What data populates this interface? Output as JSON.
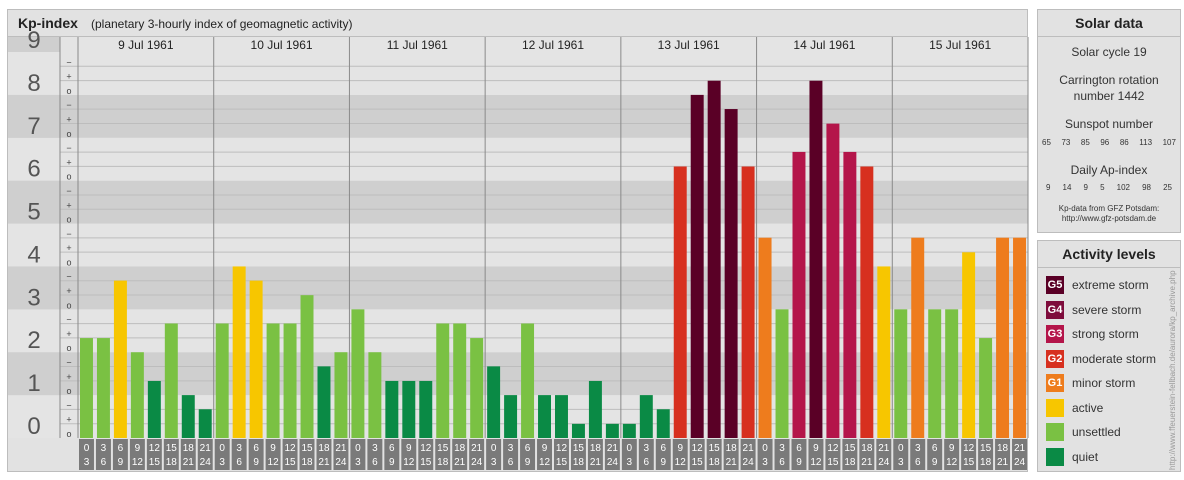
{
  "header": {
    "title": "Kp-index",
    "subtitle": "(planetary 3-hourly index of geomagnetic activity)"
  },
  "chart_data": {
    "type": "bar",
    "ylim": [
      0,
      9
    ],
    "y_ticks": [
      "0",
      "1",
      "2",
      "3",
      "4",
      "5",
      "6",
      "7",
      "8",
      "9"
    ],
    "minor_marks": [
      "o",
      "+",
      "−"
    ],
    "days": [
      "9 Jul 1961",
      "10 Jul 1961",
      "11 Jul 1961",
      "12 Jul 1961",
      "13 Jul 1961",
      "14 Jul 1961",
      "15 Jul 1961"
    ],
    "interval_labels": [
      [
        "0",
        "3"
      ],
      [
        "3",
        "6"
      ],
      [
        "6",
        "9"
      ],
      [
        "9",
        "12"
      ],
      [
        "12",
        "15"
      ],
      [
        "15",
        "18"
      ],
      [
        "18",
        "21"
      ],
      [
        "21",
        "24"
      ]
    ],
    "values": [
      2.33,
      2.33,
      3.67,
      2.0,
      1.33,
      2.67,
      1.0,
      0.67,
      2.67,
      4.0,
      3.67,
      2.67,
      2.67,
      3.33,
      1.67,
      2.0,
      3.0,
      2.0,
      1.33,
      1.33,
      1.33,
      2.67,
      2.67,
      2.33,
      1.67,
      1.0,
      2.67,
      1.0,
      1.0,
      0.33,
      1.33,
      0.33,
      0.33,
      1.0,
      0.67,
      6.33,
      8.0,
      8.33,
      7.67,
      6.33,
      4.67,
      3.0,
      6.67,
      8.33,
      7.33,
      6.67,
      6.33,
      4.0,
      3.0,
      4.67,
      3.0,
      3.0,
      4.33,
      2.33,
      4.67,
      4.67
    ],
    "colors": {
      "quiet": "#0a8a45",
      "unsettled": "#7ac143",
      "active": "#f7c600",
      "G1": "#ee7c1d",
      "G2": "#d7301f",
      "G3": "#b4154a",
      "G4": "#7e0c3c",
      "G5": "#5a0026"
    }
  },
  "solar": {
    "title": "Solar data",
    "cycle": "Solar cycle 19",
    "carrington_line1": "Carrington rotation",
    "carrington_line2": "number 1442",
    "sunspot_title": "Sunspot number",
    "sunspot_values": [
      "65",
      "73",
      "85",
      "96",
      "86",
      "113",
      "107"
    ],
    "ap_title": "Daily Ap-index",
    "ap_values": [
      "9",
      "14",
      "9",
      "5",
      "102",
      "98",
      "25"
    ],
    "credit_line1": "Kp-data from GFZ Potsdam:",
    "credit_line2": "http://www.gfz-potsdam.de"
  },
  "levels": {
    "title": "Activity levels",
    "items": [
      {
        "code": "G5",
        "label": "extreme storm",
        "color": "#5a0026"
      },
      {
        "code": "G4",
        "label": "severe storm",
        "color": "#7e0c3c"
      },
      {
        "code": "G3",
        "label": "strong storm",
        "color": "#b4154a"
      },
      {
        "code": "G2",
        "label": "moderate storm",
        "color": "#d7301f"
      },
      {
        "code": "G1",
        "label": "minor storm",
        "color": "#ee7c1d"
      },
      {
        "code": "",
        "label": "active",
        "color": "#f7c600"
      },
      {
        "code": "",
        "label": "unsettled",
        "color": "#7ac143"
      },
      {
        "code": "",
        "label": "quiet",
        "color": "#0a8a45"
      }
    ]
  },
  "side_credit": "http://www.ffeuerstein-fellbach.de/aurora/kp_archive.php"
}
